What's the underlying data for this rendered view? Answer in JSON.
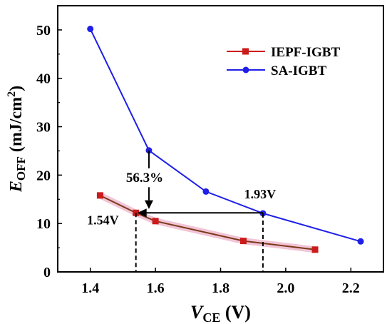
{
  "chart_data": {
    "type": "line",
    "x_label": {
      "main": "V",
      "sub": "CE",
      "unit": " (V)"
    },
    "y_label": {
      "main": "E",
      "sub": "OFF",
      "unit": " (mJ/cm",
      "sup": "2",
      "close": ")"
    },
    "xlim": [
      1.3,
      2.3
    ],
    "ylim": [
      0,
      55
    ],
    "x_ticks": [
      1.4,
      1.6,
      1.8,
      2.0,
      2.2
    ],
    "y_ticks": [
      0,
      10,
      20,
      30,
      40,
      50
    ],
    "grid": false,
    "legend_position": "top-right",
    "series": [
      {
        "name": "IEPF-IGBT",
        "color": "#cc1b1b",
        "highlight": "#f2c4d6",
        "marker": "square",
        "x": [
          1.43,
          1.54,
          1.6,
          1.87,
          2.09
        ],
        "y": [
          15.8,
          12.2,
          10.5,
          6.4,
          4.6
        ]
      },
      {
        "name": "SA-IGBT",
        "color": "#1f1fe8",
        "marker": "circle",
        "x": [
          1.4,
          1.58,
          1.755,
          1.93,
          2.23
        ],
        "y": [
          50.2,
          25.1,
          16.6,
          12.1,
          6.3
        ]
      }
    ],
    "annotations": [
      {
        "id": "drop",
        "text": "56.3%",
        "x": 1.58
      },
      {
        "id": "iepf_v",
        "text": "1.54V",
        "x": 1.54
      },
      {
        "id": "sa_v",
        "text": "1.93V",
        "x": 1.93
      }
    ]
  }
}
